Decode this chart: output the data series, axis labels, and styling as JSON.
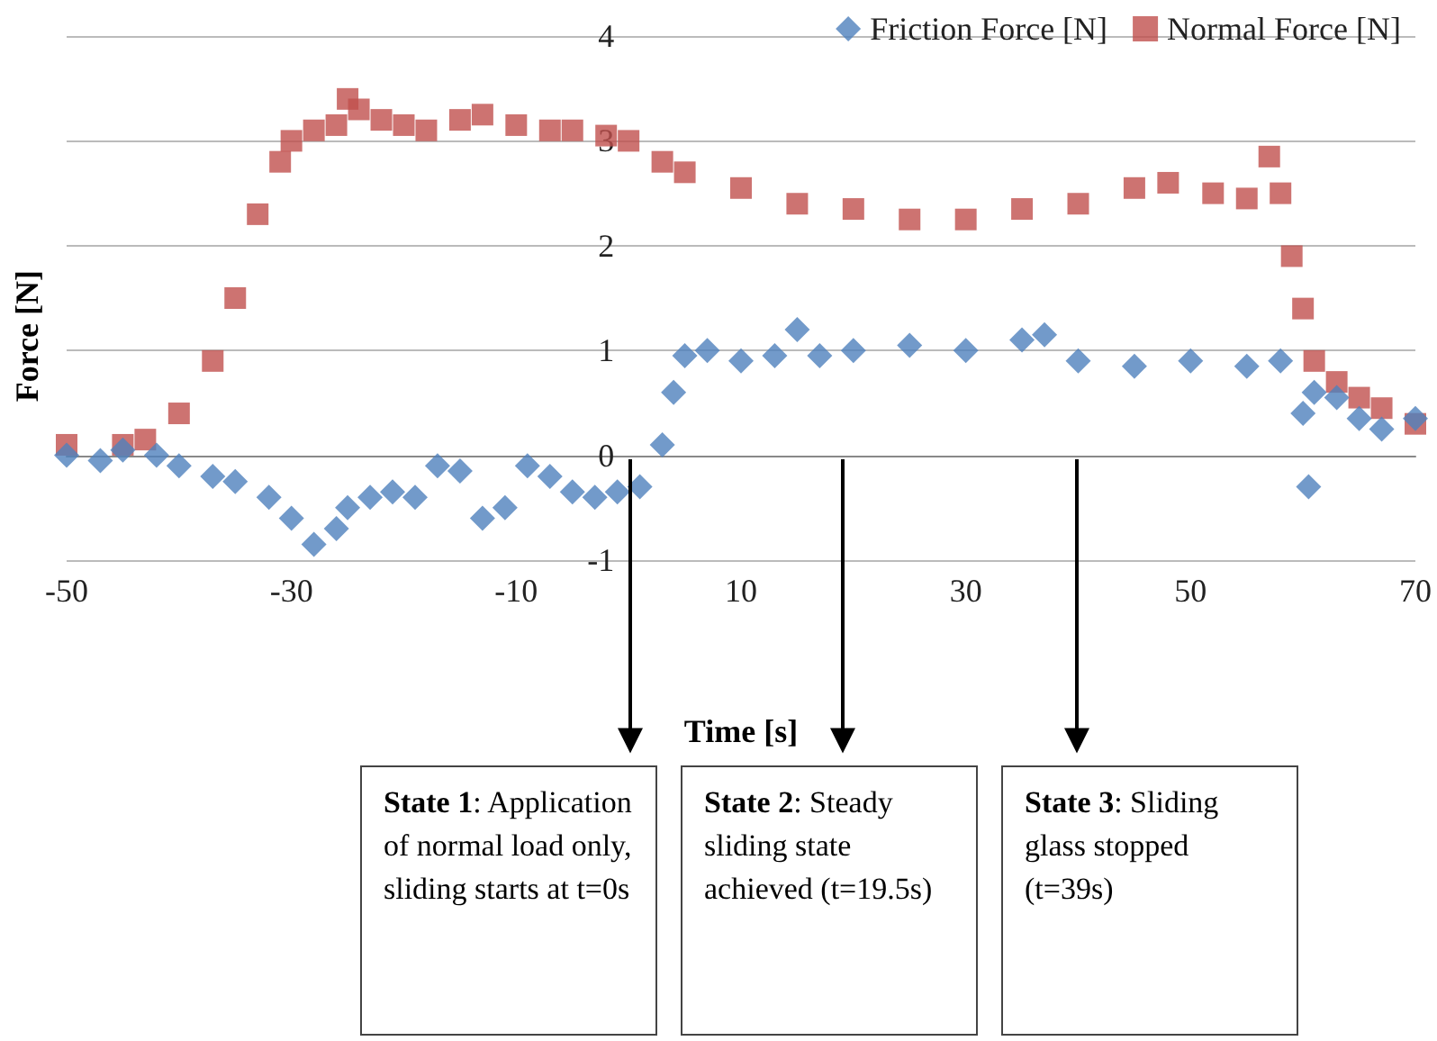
{
  "chart_data": {
    "type": "scatter",
    "xlabel": "Time [s]",
    "ylabel": "Force [N]",
    "xlim": [
      -50,
      70
    ],
    "xticks": [
      -50,
      -30,
      -10,
      10,
      30,
      50,
      70
    ],
    "ylim": [
      -1,
      4
    ],
    "yticks": [
      -1,
      0,
      1,
      2,
      3,
      4
    ],
    "grid": "y",
    "legend": "top right",
    "series": [
      {
        "name": "Friction Force [N]",
        "color": "#4f81bd",
        "marker": "diamond",
        "x": [
          -50,
          -47,
          -45,
          -42,
          -40,
          -37,
          -35,
          -32,
          -30,
          -28,
          -26,
          -25,
          -23,
          -21,
          -19,
          -17,
          -15,
          -13,
          -11,
          -9,
          -7,
          -5,
          -3,
          -1,
          1,
          3,
          4,
          5,
          7,
          10,
          13,
          15,
          17,
          20,
          25,
          30,
          35,
          37,
          40,
          45,
          50,
          55,
          58,
          60,
          60.5,
          61,
          63,
          65,
          67,
          70
        ],
        "values": [
          0,
          -0.05,
          0.05,
          0,
          -0.1,
          -0.2,
          -0.25,
          -0.4,
          -0.6,
          -0.85,
          -0.7,
          -0.5,
          -0.4,
          -0.35,
          -0.4,
          -0.1,
          -0.15,
          -0.6,
          -0.5,
          -0.1,
          -0.2,
          -0.35,
          -0.4,
          -0.35,
          -0.3,
          0.1,
          0.6,
          0.95,
          1,
          0.9,
          0.95,
          1.2,
          0.95,
          1,
          1.05,
          1,
          1.1,
          1.15,
          0.9,
          0.85,
          0.9,
          0.85,
          0.9,
          0.4,
          -0.3,
          0.6,
          0.55,
          0.35,
          0.25,
          0.35
        ]
      },
      {
        "name": "Normal Force [N]",
        "color": "#c0504d",
        "marker": "square",
        "x": [
          -50,
          -45,
          -43,
          -40,
          -37,
          -35,
          -33,
          -31,
          -30,
          -28,
          -26,
          -25,
          -24,
          -22,
          -20,
          -18,
          -15,
          -13,
          -10,
          -7,
          -5,
          -2,
          0,
          3,
          5,
          10,
          15,
          20,
          25,
          30,
          35,
          40,
          45,
          48,
          52,
          55,
          57,
          58,
          59,
          60,
          61,
          63,
          65,
          67,
          70
        ],
        "values": [
          0.1,
          0.1,
          0.15,
          0.4,
          0.9,
          1.5,
          2.3,
          2.8,
          3,
          3.1,
          3.15,
          3.4,
          3.3,
          3.2,
          3.15,
          3.1,
          3.2,
          3.25,
          3.15,
          3.1,
          3.1,
          3.05,
          3,
          2.8,
          2.7,
          2.55,
          2.4,
          2.35,
          2.25,
          2.25,
          2.35,
          2.4,
          2.55,
          2.6,
          2.5,
          2.45,
          2.85,
          2.5,
          1.9,
          1.4,
          0.9,
          0.7,
          0.55,
          0.45,
          0.3
        ]
      }
    ],
    "annotations": [
      "State 1: Application of normal load only, sliding starts at t=0s",
      "State 2: Steady sliding state achieved (t=19.5s)",
      "State 3: Sliding glass stopped (t=39s)"
    ]
  }
}
